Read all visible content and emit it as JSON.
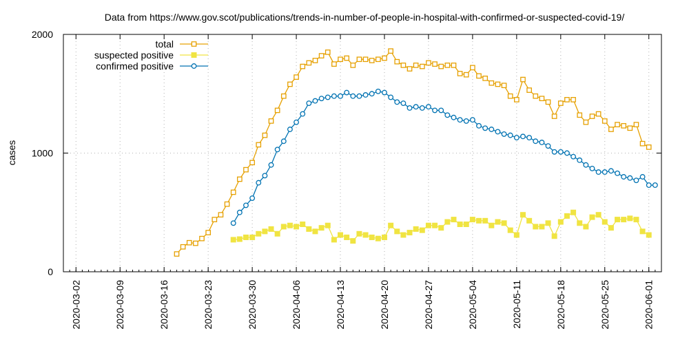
{
  "chart_data": {
    "type": "line",
    "title": "Data from https://www.gov.scot/publications/trends-in-number-of-people-in-hospital-with-confirmed-or-suspected-covid-19/",
    "xlabel": "",
    "ylabel": "cases",
    "ylim": [
      0,
      2000
    ],
    "yticks": [
      0,
      1000,
      2000
    ],
    "xlim": [
      "2020-02-29",
      "2020-06-03"
    ],
    "xticks": [
      "2020-03-02",
      "2020-03-09",
      "2020-03-16",
      "2020-03-23",
      "2020-03-30",
      "2020-04-06",
      "2020-04-13",
      "2020-04-20",
      "2020-04-27",
      "2020-05-04",
      "2020-05-11",
      "2020-05-18",
      "2020-05-25",
      "2020-06-01"
    ],
    "grid": true,
    "legend_position": "top-left",
    "series": [
      {
        "name": "total",
        "color": "#e6a000",
        "marker": "open-square",
        "start": "2020-03-18",
        "values": [
          150,
          210,
          245,
          240,
          280,
          330,
          440,
          480,
          570,
          670,
          780,
          860,
          920,
          1070,
          1150,
          1270,
          1360,
          1480,
          1580,
          1640,
          1730,
          1760,
          1780,
          1820,
          1850,
          1750,
          1790,
          1800,
          1740,
          1790,
          1790,
          1780,
          1790,
          1800,
          1860,
          1770,
          1740,
          1710,
          1740,
          1730,
          1760,
          1750,
          1730,
          1740,
          1740,
          1670,
          1660,
          1720,
          1650,
          1630,
          1590,
          1580,
          1570,
          1480,
          1450,
          1620,
          1530,
          1480,
          1460,
          1430,
          1310,
          1420,
          1450,
          1450,
          1320,
          1260,
          1310,
          1330,
          1270,
          1200,
          1240,
          1230,
          1210,
          1240,
          1080,
          1050
        ]
      },
      {
        "name": "suspected positive",
        "color": "#f0e442",
        "marker": "filled-square",
        "start": "2020-03-27",
        "values": [
          270,
          275,
          290,
          290,
          320,
          340,
          360,
          320,
          380,
          390,
          380,
          400,
          360,
          340,
          370,
          390,
          270,
          310,
          290,
          260,
          320,
          310,
          290,
          280,
          290,
          390,
          340,
          310,
          330,
          360,
          350,
          390,
          390,
          370,
          420,
          440,
          400,
          400,
          440,
          430,
          430,
          390,
          420,
          410,
          350,
          310,
          480,
          430,
          380,
          380,
          410,
          300,
          420,
          470,
          500,
          410,
          380,
          460,
          480,
          420,
          370,
          440,
          440,
          450,
          440,
          340,
          310
        ]
      },
      {
        "name": "confirmed positive",
        "color": "#0072b2",
        "marker": "open-circle",
        "start": "2020-03-27",
        "values": [
          410,
          500,
          560,
          620,
          750,
          810,
          900,
          1030,
          1100,
          1200,
          1260,
          1330,
          1420,
          1440,
          1460,
          1470,
          1480,
          1480,
          1510,
          1480,
          1480,
          1490,
          1500,
          1520,
          1510,
          1470,
          1430,
          1420,
          1380,
          1390,
          1380,
          1390,
          1360,
          1360,
          1320,
          1300,
          1280,
          1270,
          1280,
          1230,
          1210,
          1200,
          1180,
          1160,
          1150,
          1130,
          1140,
          1130,
          1100,
          1090,
          1060,
          1010,
          1010,
          1000,
          970,
          940,
          900,
          870,
          840,
          840,
          850,
          830,
          800,
          790,
          770,
          800,
          730,
          730
        ]
      }
    ]
  }
}
